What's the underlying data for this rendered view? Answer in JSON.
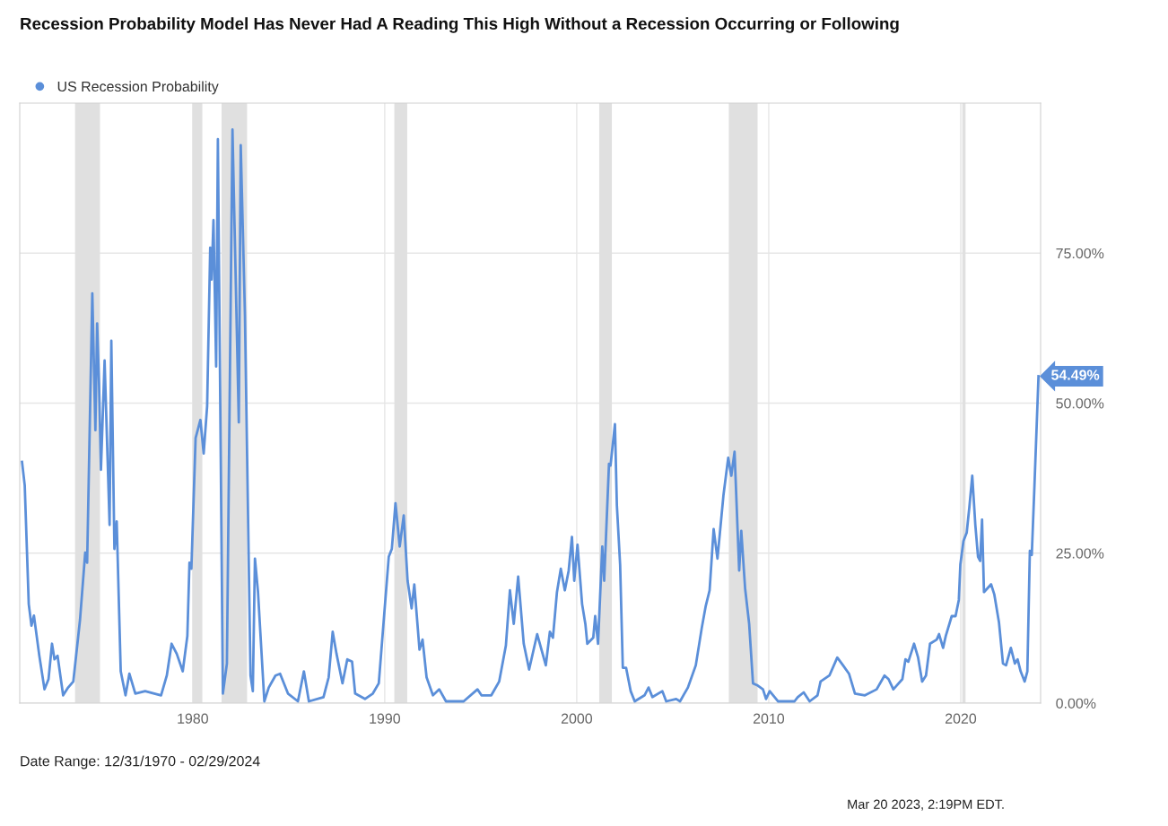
{
  "chart_data": {
    "type": "line",
    "title": "Recession Probability Model Has Never Had A Reading This High Without a Recession Occurring or Following",
    "x": [
      1971.11,
      1971.25,
      1971.46,
      1971.6,
      1971.73,
      1972.01,
      1972.28,
      1972.49,
      1972.67,
      1972.8,
      1972.96,
      1973.25,
      1973.51,
      1973.78,
      1974.13,
      1974.4,
      1974.5,
      1974.77,
      1974.93,
      1975.02,
      1975.12,
      1975.22,
      1975.41,
      1975.67,
      1975.76,
      1975.92,
      1976.04,
      1976.25,
      1976.5,
      1976.7,
      1977.01,
      1977.52,
      1978.35,
      1978.65,
      1978.9,
      1979.17,
      1979.48,
      1979.72,
      1979.83,
      1979.93,
      1980.15,
      1980.4,
      1980.57,
      1980.75,
      1980.91,
      1980.98,
      1981.08,
      1981.22,
      1981.31,
      1981.57,
      1981.78,
      1982.07,
      1982.4,
      1982.5,
      1982.72,
      1983.01,
      1983.13,
      1983.24,
      1983.4,
      1983.73,
      1983.96,
      1984.31,
      1984.55,
      1984.96,
      1985.48,
      1985.79,
      1986.05,
      1986.81,
      1987.08,
      1987.29,
      1987.49,
      1987.8,
      1988.05,
      1988.3,
      1988.46,
      1988.97,
      1989.38,
      1989.69,
      1990.21,
      1990.37,
      1990.56,
      1990.78,
      1990.99,
      1991.19,
      1991.4,
      1991.54,
      1991.81,
      1991.97,
      1992.18,
      1992.51,
      1992.84,
      1993.19,
      1994.11,
      1994.83,
      1995.04,
      1995.55,
      1995.96,
      1996.31,
      1996.52,
      1996.72,
      1996.95,
      1997.24,
      1997.52,
      1997.94,
      1998.19,
      1998.39,
      1998.6,
      1998.76,
      1998.97,
      1999.17,
      1999.38,
      1999.58,
      1999.75,
      1999.87,
      2000.04,
      2000.28,
      2000.45,
      2000.55,
      2000.86,
      2000.96,
      2001.11,
      2001.33,
      2001.43,
      2001.68,
      2001.76,
      2001.99,
      2002.09,
      2002.26,
      2002.4,
      2002.57,
      2002.81,
      2003.02,
      2003.53,
      2003.74,
      2003.94,
      2004.46,
      2004.66,
      2005.18,
      2005.38,
      2005.79,
      2006.2,
      2006.51,
      2006.72,
      2006.92,
      2007.13,
      2007.33,
      2007.64,
      2007.89,
      2008.05,
      2008.22,
      2008.46,
      2008.57,
      2008.77,
      2008.98,
      2009.18,
      2009.39,
      2009.7,
      2009.86,
      2010.05,
      2010.48,
      2011.34,
      2011.51,
      2011.82,
      2012.13,
      2012.54,
      2012.7,
      2013.16,
      2013.57,
      2013.87,
      2014.18,
      2014.49,
      2015.01,
      2015.62,
      2016.03,
      2016.24,
      2016.49,
      2016.96,
      2017.12,
      2017.27,
      2017.57,
      2017.78,
      2017.99,
      2018.19,
      2018.4,
      2018.75,
      2018.87,
      2019.08,
      2019.22,
      2019.53,
      2019.73,
      2019.9,
      2019.98,
      2020.14,
      2020.31,
      2020.45,
      2020.6,
      2020.76,
      2020.9,
      2021.01,
      2021.11,
      2021.21,
      2021.38,
      2021.58,
      2021.75,
      2021.99,
      2022.2,
      2022.36,
      2022.61,
      2022.82,
      2022.96,
      2023.12,
      2023.33,
      2023.47,
      2023.6,
      2023.7,
      2023.84,
      2024.05
    ],
    "series": [
      {
        "name": "US Recession Probability",
        "color": "#5b8fd9",
        "values": [
          40.2,
          36.3,
          16.5,
          12.9,
          14.6,
          7.9,
          2.3,
          4.0,
          9.9,
          7.3,
          7.9,
          1.3,
          2.6,
          3.6,
          13.9,
          25.1,
          23.4,
          68.3,
          45.5,
          63.3,
          53.4,
          38.9,
          57.1,
          29.7,
          60.4,
          25.7,
          30.3,
          5.3,
          1.3,
          4.9,
          1.6,
          2.0,
          1.3,
          4.6,
          9.9,
          8.2,
          5.3,
          11.2,
          23.4,
          22.4,
          44.2,
          47.2,
          41.6,
          49.5,
          75.9,
          70.6,
          80.5,
          56.1,
          94.0,
          1.6,
          6.6,
          95.6,
          46.8,
          93.0,
          64.6,
          4.6,
          2.0,
          24.1,
          18.5,
          0.3,
          2.6,
          4.6,
          4.9,
          1.6,
          0.3,
          5.3,
          0.3,
          1.0,
          4.3,
          11.9,
          8.2,
          3.3,
          7.3,
          6.9,
          1.6,
          0.7,
          1.6,
          3.3,
          24.4,
          25.7,
          33.3,
          26.1,
          31.3,
          20.4,
          15.8,
          19.8,
          8.9,
          10.6,
          4.3,
          1.3,
          2.3,
          0.3,
          0.3,
          2.3,
          1.3,
          1.3,
          3.6,
          9.6,
          18.8,
          13.2,
          21.1,
          9.9,
          5.6,
          11.5,
          8.6,
          6.3,
          11.9,
          10.9,
          18.5,
          22.4,
          18.8,
          22.1,
          27.7,
          20.4,
          26.4,
          16.5,
          13.2,
          9.9,
          10.9,
          14.5,
          9.9,
          26.1,
          20.4,
          39.9,
          39.6,
          46.5,
          33.0,
          23.1,
          5.9,
          5.9,
          2.0,
          0.3,
          1.3,
          2.6,
          1.0,
          2.0,
          0.3,
          0.7,
          0.3,
          2.6,
          6.3,
          12.5,
          16.2,
          18.8,
          29.0,
          24.1,
          34.6,
          40.9,
          37.9,
          41.9,
          22.1,
          28.7,
          19.1,
          13.2,
          3.3,
          3.0,
          2.3,
          0.7,
          2.0,
          0.3,
          0.3,
          1.0,
          1.8,
          0.3,
          1.3,
          3.6,
          4.6,
          7.6,
          6.3,
          4.9,
          1.6,
          1.3,
          2.3,
          4.6,
          4.0,
          2.3,
          4.0,
          7.3,
          6.9,
          9.9,
          7.6,
          3.6,
          4.6,
          9.9,
          10.6,
          11.5,
          9.2,
          11.2,
          14.5,
          14.5,
          17.2,
          23.1,
          27.0,
          28.4,
          32.7,
          37.9,
          29.7,
          24.4,
          23.7,
          30.6,
          18.5,
          19.1,
          19.8,
          18.1,
          13.5,
          6.6,
          6.3,
          9.2,
          6.6,
          7.3,
          5.3,
          3.6,
          5.3,
          25.4,
          24.7,
          36.3,
          54.49
        ]
      }
    ],
    "xlim": [
      1970.99,
      2024.16
    ],
    "xticks": [
      1980,
      1990,
      2000,
      2010,
      2020
    ],
    "ylim": [
      0,
      100
    ],
    "yticks": [
      {
        "value": 0,
        "label": "0.00%"
      },
      {
        "value": 25,
        "label": "25.00%"
      },
      {
        "value": 50,
        "label": "50.00%"
      },
      {
        "value": 75,
        "label": "75.00%"
      }
    ],
    "bands": [
      {
        "axis": "x",
        "from": 1973.87,
        "to": 1975.17,
        "color": "#e0e0e0"
      },
      {
        "axis": "x",
        "from": 1980.0,
        "to": 1980.5,
        "color": "#e0e0e0"
      },
      {
        "axis": "x",
        "from": 1981.5,
        "to": 1982.83,
        "color": "#e0e0e0"
      },
      {
        "axis": "x",
        "from": 1990.5,
        "to": 1991.17,
        "color": "#e0e0e0"
      },
      {
        "axis": "x",
        "from": 2001.17,
        "to": 2001.83,
        "color": "#e0e0e0"
      },
      {
        "axis": "x",
        "from": 2007.92,
        "to": 2009.42,
        "color": "#e0e0e0"
      },
      {
        "axis": "x",
        "from": 2020.08,
        "to": 2020.25,
        "color": "#e0e0e0"
      }
    ],
    "annotations": [
      {
        "text": "54.49%",
        "x": 2024.05,
        "y": 54.49
      },
      "Date Range: 12/31/1970 - 02/29/2024",
      "Mar 20 2023, 2:19PM EDT."
    ],
    "grid": true,
    "legend": "top left",
    "marker": "none",
    "line_style": "solid"
  }
}
